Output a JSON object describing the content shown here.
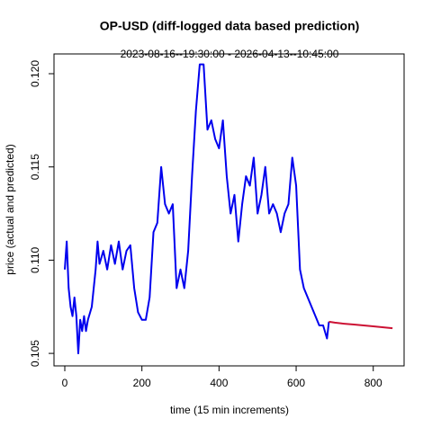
{
  "chart_data": {
    "type": "line",
    "title": "OP-USD (diff-logged data based prediction)",
    "subtitle": "2023-08-16--19:30:00  -  2026-04-13--10:45:00",
    "xlabel": "time (15 min increments)",
    "ylabel": "price (actual and predicted)",
    "xlim": [
      -28,
      880
    ],
    "xticks": [
      0,
      200,
      400,
      600,
      800
    ],
    "ylim": [
      0.10433,
      0.12106
    ],
    "yticks": [
      0.105,
      {
        "value": 0.11,
        "label": "0.110"
      },
      0.115,
      {
        "value": 0.12,
        "label": "0.120"
      }
    ],
    "series": [
      {
        "color": "#0000ee",
        "x": [
          0,
          5,
          10,
          15,
          20,
          25,
          30,
          35,
          40,
          45,
          50,
          55,
          60,
          70,
          80,
          85,
          90,
          100,
          110,
          120,
          130,
          140,
          150,
          160,
          170,
          180,
          190,
          200,
          210,
          220,
          230,
          240,
          250,
          260,
          270,
          280,
          290,
          300,
          310,
          320,
          330,
          340,
          350,
          360,
          370,
          380,
          390,
          400,
          410,
          420,
          430,
          440,
          450,
          460,
          470,
          480,
          490,
          500,
          510,
          520,
          530,
          540,
          550,
          560,
          570,
          580,
          590,
          600,
          610,
          620,
          630,
          640,
          650,
          660,
          670,
          680,
          685
        ],
        "values": [
          0.1095,
          0.111,
          0.1085,
          0.1075,
          0.107,
          0.108,
          0.107,
          0.105,
          0.1068,
          0.1062,
          0.107,
          0.1062,
          0.1068,
          0.1075,
          0.1095,
          0.111,
          0.1098,
          0.1105,
          0.1095,
          0.1108,
          0.1098,
          0.111,
          0.1095,
          0.1105,
          0.1108,
          0.1085,
          0.1072,
          0.1068,
          0.1068,
          0.108,
          0.1115,
          0.112,
          0.115,
          0.113,
          0.1125,
          0.113,
          0.1085,
          0.1095,
          0.1085,
          0.1105,
          0.1145,
          0.118,
          0.1205,
          0.1205,
          0.117,
          0.1175,
          0.1165,
          0.116,
          0.1175,
          0.1145,
          0.1125,
          0.1135,
          0.111,
          0.113,
          0.1145,
          0.114,
          0.1155,
          0.1125,
          0.1135,
          0.115,
          0.1125,
          0.113,
          0.1125,
          0.1115,
          0.1125,
          0.113,
          0.1155,
          0.114,
          0.1095,
          0.1085,
          0.108,
          0.1075,
          0.107,
          0.1065,
          0.1065,
          0.1058,
          0.1067
        ]
      },
      {
        "color": "#cc1133",
        "x": [
          685,
          700,
          720,
          750,
          800,
          850
        ],
        "values": [
          0.1067,
          0.10665,
          0.1066,
          0.10655,
          0.10645,
          0.10635
        ]
      }
    ]
  }
}
